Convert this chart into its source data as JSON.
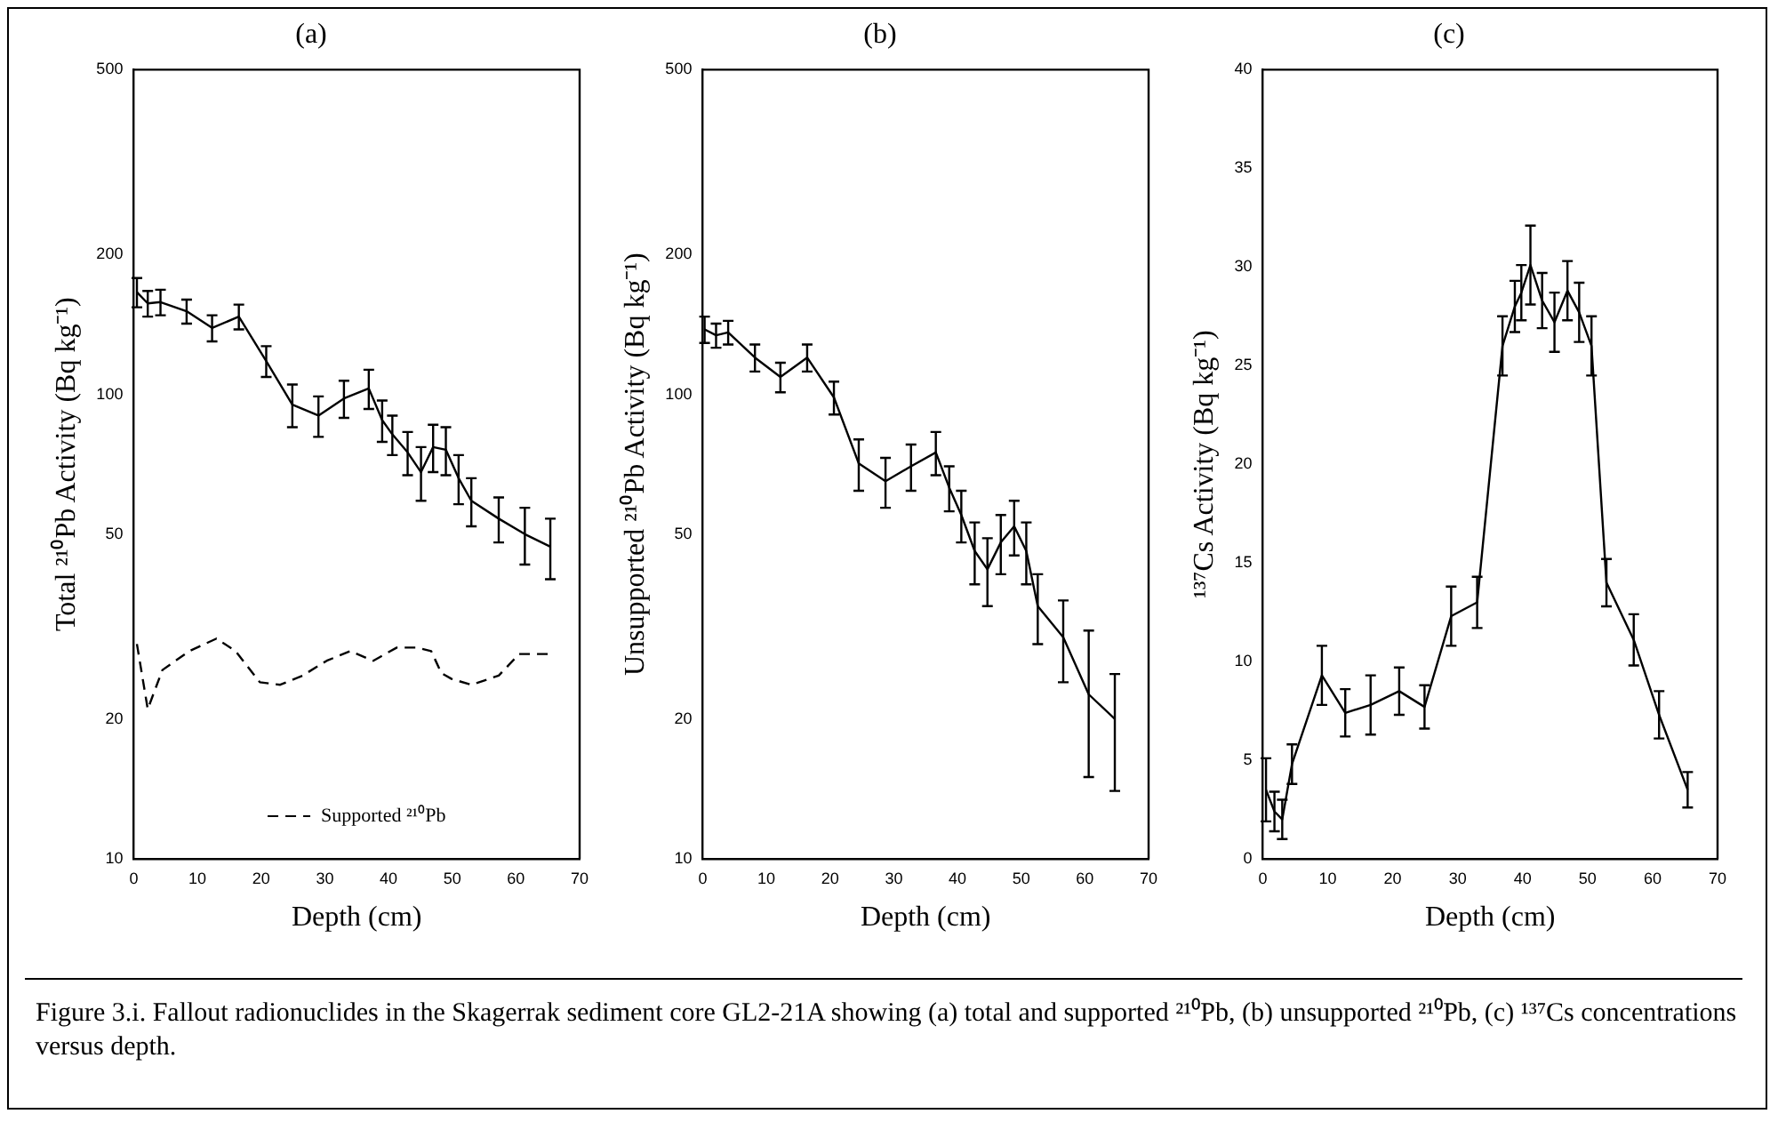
{
  "chart_data": [
    {
      "type": "line",
      "title": "(a)",
      "xlabel": "Depth (cm)",
      "ylabel": "Total ²¹⁰Pb Activity (Bq kg⁻¹)",
      "log": true,
      "xlim": [
        0,
        70
      ],
      "xticks": [
        0,
        10,
        20,
        30,
        40,
        50,
        60,
        70
      ],
      "ylim": [
        10,
        500
      ],
      "yticks": [
        10,
        20,
        50,
        100,
        200,
        500
      ],
      "marker": "none",
      "legend": "bottom",
      "annotations": [
        "Figure 3.i.    Fallout radionuclides in the Skagerrak sediment core GL2-21A showing (a) total and supported ²¹⁰Pb, (b) unsupported ²¹⁰Pb, (c) ¹³⁷Cs concentrations versus depth."
      ],
      "series": [
        {
          "color": "#000000",
          "line_style": "solid",
          "x": [
            0.5,
            2.2,
            4.2,
            8.3,
            12.3,
            16.5,
            20.8,
            24.9,
            29,
            33,
            36.9,
            39,
            40.6,
            43,
            45.1,
            47,
            49,
            51,
            53,
            57.3,
            61.4,
            65.4
          ],
          "values": [
            166,
            157,
            158,
            151,
            139,
            147,
            118,
            95,
            90,
            98,
            103,
            88,
            82,
            75,
            68,
            77,
            76,
            66,
            59,
            54,
            50,
            47
          ],
          "errors": [
            12,
            10,
            10,
            9,
            9,
            9,
            9,
            10,
            9,
            9,
            10,
            9,
            8,
            8,
            9,
            9,
            9,
            8,
            7,
            6,
            7,
            7
          ]
        },
        {
          "name": "Supported ²¹⁰Pb",
          "color": "#000000",
          "line_style": "dashed",
          "x": [
            0.5,
            2.2,
            4.5,
            8.7,
            13,
            16,
            19.8,
            23,
            26.5,
            30.3,
            34,
            37.6,
            41.3,
            44.5,
            46.7,
            48.3,
            49.9,
            53,
            57.3,
            60.5,
            65.4
          ],
          "values": [
            29,
            21,
            25.5,
            28,
            29.8,
            28,
            24,
            23.7,
            24.8,
            26.7,
            28,
            26.7,
            28.5,
            28.5,
            28,
            25.1,
            24.4,
            23.7,
            24.8,
            27.6,
            27.6
          ]
        }
      ]
    },
    {
      "type": "line",
      "title": "(b)",
      "xlabel": "Depth (cm)",
      "ylabel": "Unsupported ²¹⁰Pb Activity (Bq kg⁻¹)",
      "log": true,
      "xlim": [
        0,
        70
      ],
      "xticks": [
        0,
        10,
        20,
        30,
        40,
        50,
        60,
        70
      ],
      "ylim": [
        10,
        500
      ],
      "yticks": [
        10,
        20,
        50,
        100,
        200,
        500
      ],
      "marker": "none",
      "series": [
        {
          "color": "#000000",
          "line_style": "solid",
          "x": [
            0.3,
            2.1,
            4,
            8.2,
            12.2,
            16.4,
            20.6,
            24.5,
            28.7,
            32.7,
            36.6,
            38.7,
            40.6,
            42.7,
            44.7,
            46.8,
            48.9,
            50.8,
            52.6,
            56.6,
            60.6,
            64.7
          ],
          "values": [
            138,
            134,
            136,
            120,
            109,
            120,
            98.5,
            71,
            65,
            70,
            75,
            63,
            55,
            46,
            42,
            48,
            52,
            46,
            35,
            30,
            22.6,
            20
          ],
          "errors": [
            9,
            8,
            8,
            8,
            8,
            8,
            8,
            9,
            8,
            8,
            8,
            7,
            7,
            7,
            7,
            7,
            7,
            7,
            6,
            6,
            [
              15,
              31
            ],
            [
              14,
              25
            ]
          ]
        }
      ]
    },
    {
      "type": "line",
      "title": "(c)",
      "xlabel": "Depth (cm)",
      "ylabel": "¹³⁷Cs Activity (Bq kg⁻¹)",
      "xlim": [
        0,
        70
      ],
      "xticks": [
        0,
        10,
        20,
        30,
        40,
        50,
        60,
        70
      ],
      "ylim": [
        0,
        40
      ],
      "yticks": [
        0,
        5,
        10,
        15,
        20,
        25,
        30,
        35,
        40
      ],
      "marker": "none",
      "series": [
        {
          "color": "#000000",
          "line_style": "solid",
          "x": [
            0.5,
            1.8,
            3,
            4.5,
            9.1,
            12.7,
            16.6,
            21,
            24.9,
            29,
            33,
            36.9,
            38.8,
            39.8,
            41.2,
            43,
            44.9,
            46.9,
            48.7,
            50.6,
            52.9,
            57.1,
            61,
            65.4
          ],
          "values": [
            3.5,
            2.4,
            2,
            4.8,
            9.3,
            7.4,
            7.8,
            8.5,
            7.7,
            12.3,
            13,
            26,
            28,
            28.7,
            30.1,
            28.3,
            27.2,
            28.8,
            27.7,
            26,
            14,
            11.1,
            7.3,
            3.5
          ],
          "errors": [
            1.6,
            1,
            1,
            1,
            1.5,
            1.2,
            1.5,
            1.2,
            1.1,
            1.5,
            1.3,
            1.5,
            1.3,
            1.4,
            2,
            1.4,
            1.5,
            1.5,
            1.5,
            1.5,
            1.2,
            1.3,
            1.2,
            0.9
          ]
        }
      ]
    }
  ]
}
